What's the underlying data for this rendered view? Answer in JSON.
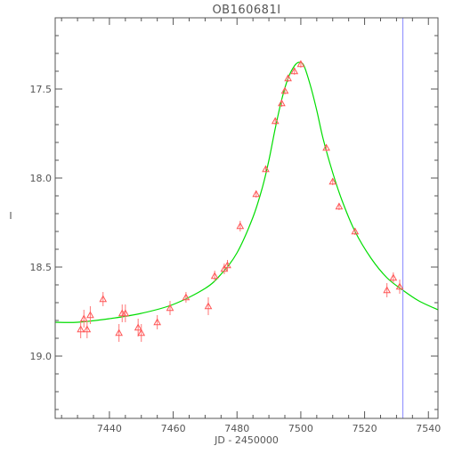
{
  "chart_data": {
    "type": "scatter",
    "title": "OB160681I",
    "xlabel": "JD - 2450000",
    "ylabel": "I",
    "xlim": [
      7423,
      7543
    ],
    "ylim": [
      19.35,
      17.1
    ],
    "y_inverted": true,
    "grid": false,
    "x_ticks": [
      7440,
      7460,
      7480,
      7500,
      7520,
      7540
    ],
    "y_ticks": [
      17.5,
      18.0,
      18.5,
      19.0
    ],
    "x_minor_step": 5,
    "y_minor_step": 0.1,
    "colors": {
      "axis": "#555555",
      "data": "#ff5555",
      "model": "#00dd00",
      "marker_line": "#8888ff"
    },
    "vertical_line_x": 7532,
    "series": [
      {
        "kind": "observations",
        "marker": "triangle",
        "points": [
          {
            "x": 7431,
            "y": 18.85,
            "err": 0.05
          },
          {
            "x": 7432,
            "y": 18.79,
            "err": 0.05
          },
          {
            "x": 7433,
            "y": 18.85,
            "err": 0.05
          },
          {
            "x": 7434,
            "y": 18.77,
            "err": 0.05
          },
          {
            "x": 7438,
            "y": 18.68,
            "err": 0.04
          },
          {
            "x": 7443,
            "y": 18.87,
            "err": 0.05
          },
          {
            "x": 7444,
            "y": 18.76,
            "err": 0.05
          },
          {
            "x": 7445,
            "y": 18.76,
            "err": 0.05
          },
          {
            "x": 7449,
            "y": 18.84,
            "err": 0.05
          },
          {
            "x": 7450,
            "y": 18.87,
            "err": 0.05
          },
          {
            "x": 7455,
            "y": 18.81,
            "err": 0.04
          },
          {
            "x": 7459,
            "y": 18.73,
            "err": 0.04
          },
          {
            "x": 7464,
            "y": 18.67,
            "err": 0.03
          },
          {
            "x": 7471,
            "y": 18.72,
            "err": 0.05
          },
          {
            "x": 7473,
            "y": 18.55,
            "err": 0.03
          },
          {
            "x": 7476,
            "y": 18.51,
            "err": 0.03
          },
          {
            "x": 7477,
            "y": 18.49,
            "err": 0.03
          },
          {
            "x": 7481,
            "y": 18.27,
            "err": 0.03
          },
          {
            "x": 7486,
            "y": 18.09,
            "err": 0.02
          },
          {
            "x": 7489,
            "y": 17.95,
            "err": 0.02
          },
          {
            "x": 7492,
            "y": 17.68,
            "err": 0.02
          },
          {
            "x": 7494,
            "y": 17.58,
            "err": 0.02
          },
          {
            "x": 7495,
            "y": 17.51,
            "err": 0.02
          },
          {
            "x": 7496,
            "y": 17.44,
            "err": 0.02
          },
          {
            "x": 7498,
            "y": 17.4,
            "err": 0.02
          },
          {
            "x": 7500,
            "y": 17.36,
            "err": 0.02
          },
          {
            "x": 7508,
            "y": 17.83,
            "err": 0.02
          },
          {
            "x": 7510,
            "y": 18.02,
            "err": 0.02
          },
          {
            "x": 7512,
            "y": 18.16,
            "err": 0.02
          },
          {
            "x": 7517,
            "y": 18.3,
            "err": 0.02
          },
          {
            "x": 7527,
            "y": 18.63,
            "err": 0.04
          },
          {
            "x": 7529,
            "y": 18.56,
            "err": 0.03
          },
          {
            "x": 7531,
            "y": 18.61,
            "err": 0.04
          }
        ]
      },
      {
        "kind": "model",
        "curve": [
          {
            "x": 7423,
            "y": 18.81
          },
          {
            "x": 7430,
            "y": 18.81
          },
          {
            "x": 7440,
            "y": 18.79
          },
          {
            "x": 7450,
            "y": 18.76
          },
          {
            "x": 7460,
            "y": 18.71
          },
          {
            "x": 7470,
            "y": 18.62
          },
          {
            "x": 7475,
            "y": 18.54
          },
          {
            "x": 7480,
            "y": 18.42
          },
          {
            "x": 7485,
            "y": 18.22
          },
          {
            "x": 7488,
            "y": 18.05
          },
          {
            "x": 7490,
            "y": 17.9
          },
          {
            "x": 7492,
            "y": 17.72
          },
          {
            "x": 7494,
            "y": 17.56
          },
          {
            "x": 7496,
            "y": 17.44
          },
          {
            "x": 7498,
            "y": 17.37
          },
          {
            "x": 7499.5,
            "y": 17.35
          },
          {
            "x": 7501,
            "y": 17.37
          },
          {
            "x": 7503,
            "y": 17.48
          },
          {
            "x": 7505,
            "y": 17.62
          },
          {
            "x": 7507,
            "y": 17.78
          },
          {
            "x": 7510,
            "y": 17.97
          },
          {
            "x": 7513,
            "y": 18.13
          },
          {
            "x": 7517,
            "y": 18.3
          },
          {
            "x": 7522,
            "y": 18.45
          },
          {
            "x": 7527,
            "y": 18.56
          },
          {
            "x": 7532,
            "y": 18.63
          },
          {
            "x": 7537,
            "y": 18.69
          },
          {
            "x": 7543,
            "y": 18.74
          }
        ]
      }
    ]
  }
}
